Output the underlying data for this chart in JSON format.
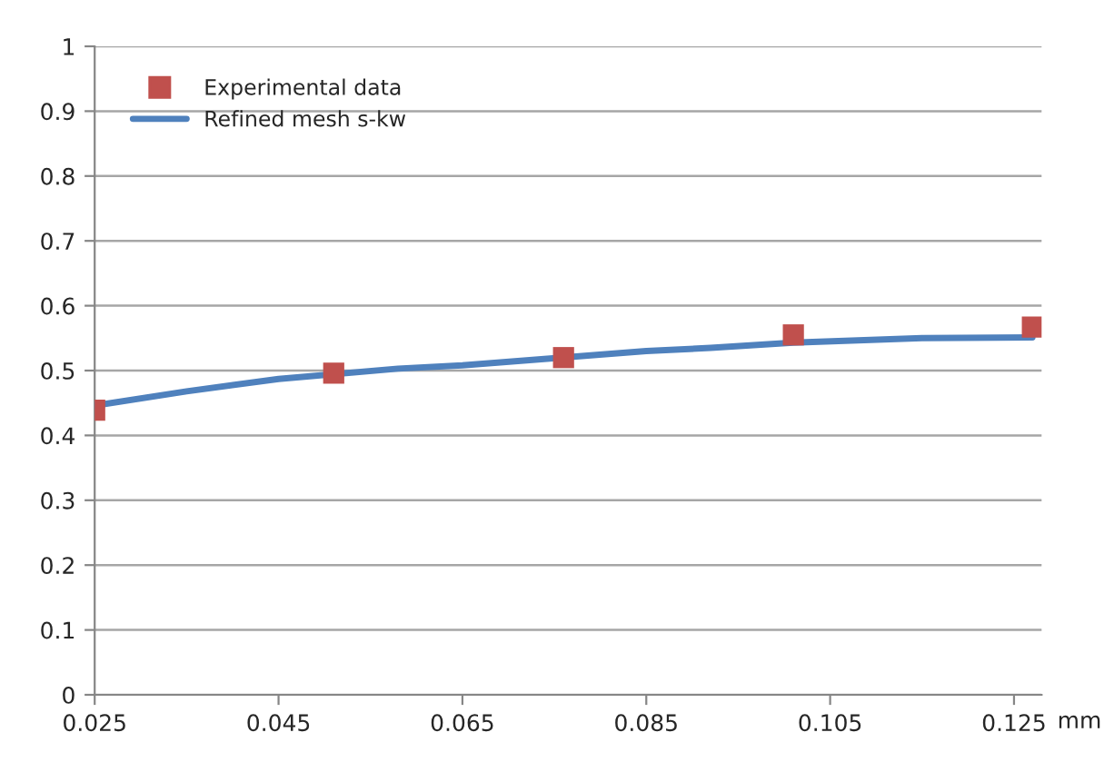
{
  "chart_data": {
    "type": "scatter",
    "xlabel": "mm",
    "x": [
      0.025,
      0.051,
      0.076,
      0.101,
      0.127
    ],
    "series": [
      {
        "name": "Experimental data",
        "color": "#c0504d",
        "marker": "square",
        "values": [
          0.439,
          0.496,
          0.52,
          0.555,
          0.567
        ]
      },
      {
        "name": "Refined mesh s-kw",
        "type": "line",
        "color": "#4f81bd",
        "marker": "none",
        "line_style": "solid",
        "x": [
          0.025,
          0.035,
          0.045,
          0.058,
          0.065,
          0.085,
          0.092,
          0.101,
          0.115,
          0.127
        ],
        "values": [
          0.446,
          0.468,
          0.487,
          0.503,
          0.508,
          0.53,
          0.535,
          0.543,
          0.55,
          0.551
        ]
      }
    ],
    "xlim": [
      0.025,
      0.128
    ],
    "xticks": [
      0.025,
      0.045,
      0.065,
      0.085,
      0.105,
      0.125
    ],
    "ylim": [
      0,
      1
    ],
    "yticks": [
      0,
      0.1,
      0.2,
      0.3,
      0.4,
      0.5,
      0.6,
      0.7,
      0.8,
      0.9,
      1
    ],
    "grid": "y",
    "legend": "top left"
  }
}
